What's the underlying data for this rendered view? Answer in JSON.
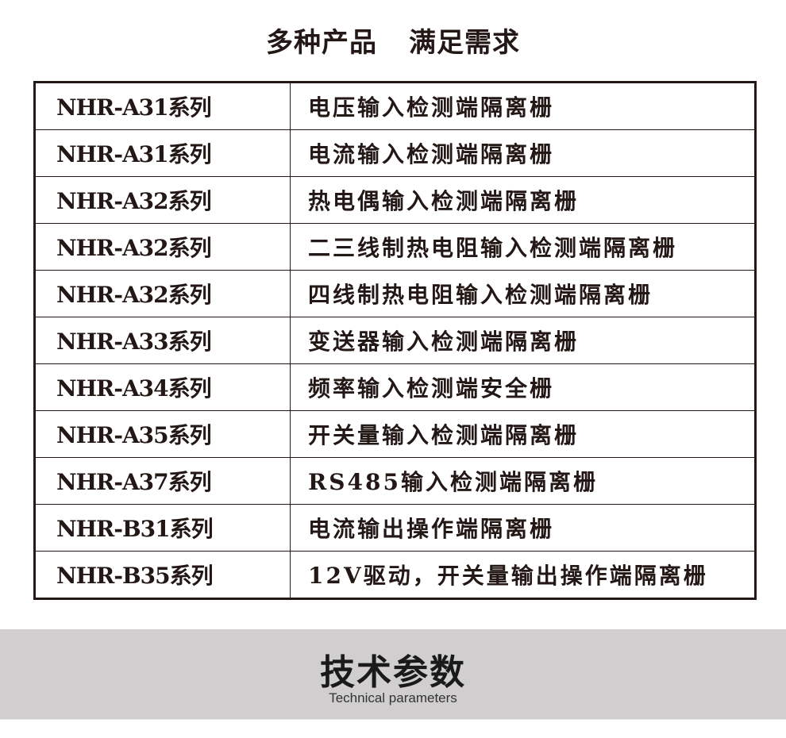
{
  "header": {
    "title_left": "多种产品",
    "title_right": "满足需求"
  },
  "products": [
    {
      "series": "NHR-A31系列",
      "description": "电压输入检测端隔离栅"
    },
    {
      "series": "NHR-A31系列",
      "description": "电流输入检测端隔离栅"
    },
    {
      "series": "NHR-A32系列",
      "description": "热电偶输入检测端隔离栅"
    },
    {
      "series": "NHR-A32系列",
      "description": "二三线制热电阻输入检测端隔离栅"
    },
    {
      "series": "NHR-A32系列",
      "description": "四线制热电阻输入检测端隔离栅"
    },
    {
      "series": "NHR-A33系列",
      "description": "变送器输入检测端隔离栅"
    },
    {
      "series": "NHR-A34系列",
      "description": "频率输入检测端安全栅"
    },
    {
      "series": "NHR-A35系列",
      "description": "开关量输入检测端隔离栅"
    },
    {
      "series": "NHR-A37系列",
      "description": "RS485输入检测端隔离栅"
    },
    {
      "series": "NHR-B31系列",
      "description": "电流输出操作端隔离栅"
    },
    {
      "series": "NHR-B35系列",
      "description": "12V驱动，开关量输出操作端隔离栅"
    }
  ],
  "section": {
    "title": "技术参数",
    "subtitle": "Technical parameters"
  },
  "colors": {
    "text": "#231815",
    "band": "#d0cecf"
  }
}
